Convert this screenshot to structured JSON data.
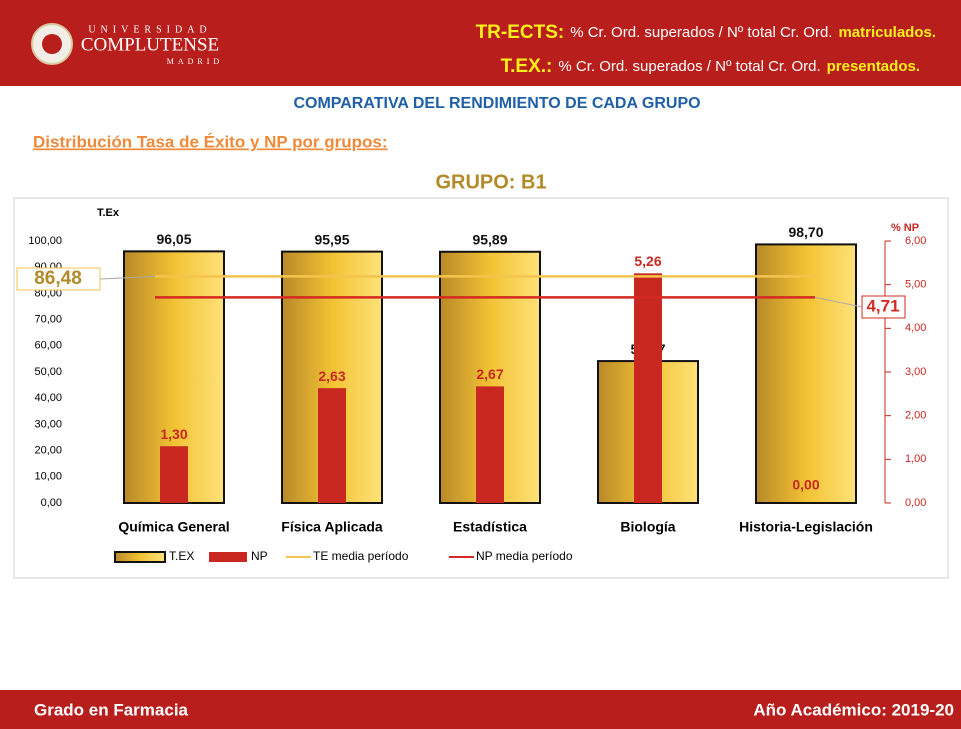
{
  "header": {
    "logo": {
      "top": "UNIVERSIDAD",
      "name": "COMPLUTENSE",
      "city": "MADRID"
    },
    "line1": [
      "TR-ECTS:",
      "% Cr. Ord. superados / Nº total Cr. Ord.",
      "matriculados."
    ],
    "line2": [
      "T.EX.:",
      "% Cr. Ord. superados / Nº total Cr. Ord.",
      "presentados."
    ]
  },
  "heading": "COMPARATIVA DEL RENDIMIENTO DE CADA GRUPO",
  "subheading": "Distribución Tasa de Éxito y NP por grupos:",
  "footer": {
    "left": "Grado en Farmacia",
    "right": "Año Académico: 2019-20"
  },
  "chart_data": {
    "type": "bar",
    "title": "GRUPO: B1",
    "y_label": "T.Ex",
    "y2_label": "% NP",
    "categories": [
      "Química General",
      "Física Aplicada",
      "Estadística",
      "Biología",
      "Historia-Legislación"
    ],
    "series": [
      {
        "name": "T.EX",
        "color": "#f2c233",
        "values": [
          96.05,
          95.95,
          95.89,
          54.17,
          98.7
        ],
        "value_labels": [
          "96,05",
          "95,95",
          "95,89",
          "54,17",
          "98,70"
        ]
      },
      {
        "name": "NP",
        "color": "#c8281f",
        "axis": "y2",
        "values": [
          1.3,
          2.63,
          2.67,
          5.26,
          0.0
        ],
        "value_labels": [
          "1,30",
          "2,63",
          "2,67",
          "5,26",
          "0,00"
        ]
      }
    ],
    "reference_lines": [
      {
        "name": "TE media período",
        "color": "#f4c44e",
        "value": 86.48,
        "label": "86,48"
      },
      {
        "name": "NP media período",
        "color": "#d42a22",
        "axis": "y2",
        "value": 4.71,
        "label": "4,71"
      }
    ],
    "ylim": [
      0,
      100
    ],
    "yticks": [
      {
        "value": 0,
        "label": "0,00"
      },
      {
        "value": 10,
        "label": "10,00"
      },
      {
        "value": 20,
        "label": "20,00"
      },
      {
        "value": 30,
        "label": "30,00"
      },
      {
        "value": 40,
        "label": "40,00"
      },
      {
        "value": 50,
        "label": "50,00"
      },
      {
        "value": 60,
        "label": "60,00"
      },
      {
        "value": 70,
        "label": "70,00"
      },
      {
        "value": 80,
        "label": "80,00"
      },
      {
        "value": 90,
        "label": "90,00"
      },
      {
        "value": 100,
        "label": "100,00"
      }
    ],
    "y2lim": [
      0,
      6
    ],
    "y2ticks": [
      {
        "value": 0,
        "label": "0,00"
      },
      {
        "value": 1,
        "label": "1,00"
      },
      {
        "value": 2,
        "label": "2,00"
      },
      {
        "value": 3,
        "label": "3,00"
      },
      {
        "value": 4,
        "label": "4,00"
      },
      {
        "value": 5,
        "label": "5,00"
      },
      {
        "value": 6,
        "label": "6,00"
      }
    ]
  }
}
